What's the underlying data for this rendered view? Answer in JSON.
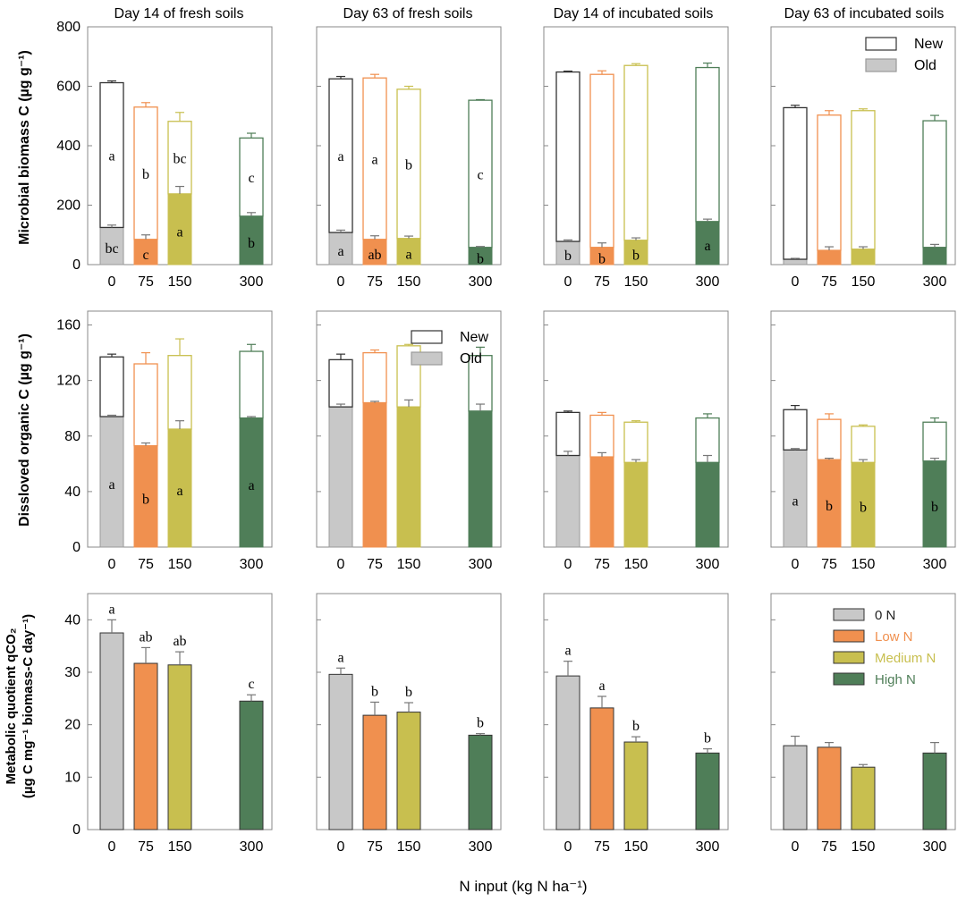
{
  "colors": {
    "0": "#c8c8c8",
    "75": "#f0904f",
    "150": "#c8bf4f",
    "300": "#4f7e58",
    "axis": "#888888",
    "text": "#000000",
    "errorbar_black": "#222222"
  },
  "x_categories": [
    "0",
    "75",
    "150",
    "300"
  ],
  "column_titles": [
    "Day 14 of fresh soils",
    "Day 63 of fresh soils",
    "Day 14 of incubated soils",
    "Day 63 of incubated soils"
  ],
  "x_axis_label": "N input (kg N ha⁻¹)",
  "rows": [
    {
      "ylabel": "Microbial biomass C (µg g⁻¹)",
      "ylim": [
        0,
        800
      ],
      "yticks": [
        0,
        200,
        400,
        600,
        800
      ],
      "legend": {
        "panel": 3,
        "position": "top-right",
        "entries": [
          "New",
          "Old"
        ]
      }
    },
    {
      "ylabel": "Dissloved organic C (µg g⁻¹)",
      "ylim": [
        0,
        170
      ],
      "yticks": [
        0,
        40,
        80,
        120,
        160
      ],
      "legend": {
        "panel": 1,
        "position": "top-right",
        "entries": [
          "New",
          "Old"
        ]
      }
    },
    {
      "ylabel_line1": "Metabolic quotient qCO₂",
      "ylabel_line2": "(µg C mg⁻¹ biomass-C day⁻¹)",
      "ylim": [
        0,
        45
      ],
      "yticks": [
        0,
        10,
        20,
        30,
        40
      ],
      "legend": {
        "panel": 3,
        "position": "top-right",
        "entries": [
          "0 N",
          "Low N",
          "Medium N",
          "High N"
        ]
      }
    }
  ],
  "chart_data": [
    {
      "type": "stacked-bar",
      "row": 0,
      "col": 0,
      "title": "Day 14 of fresh soils",
      "ylabel": "Microbial biomass C (µg g⁻¹)",
      "ylim": [
        0,
        800
      ],
      "categories": [
        "0",
        "75",
        "150",
        "300"
      ],
      "series": [
        {
          "name": "Old",
          "values": [
            125,
            85,
            238,
            163
          ],
          "errors": [
            8,
            15,
            25,
            12
          ],
          "letters": [
            "bc",
            "c",
            "a",
            "b"
          ]
        },
        {
          "name": "New",
          "values": [
            487,
            445,
            244,
            263
          ],
          "errors": [
            6,
            15,
            30,
            16
          ],
          "letters": [
            "a",
            "b",
            "bc",
            "c"
          ]
        }
      ]
    },
    {
      "type": "stacked-bar",
      "row": 0,
      "col": 1,
      "title": "Day 63 of fresh soils",
      "ylabel": "Microbial biomass C (µg g⁻¹)",
      "ylim": [
        0,
        800
      ],
      "categories": [
        "0",
        "75",
        "150",
        "300"
      ],
      "series": [
        {
          "name": "Old",
          "values": [
            108,
            85,
            88,
            58
          ],
          "errors": [
            8,
            12,
            8,
            3
          ],
          "letters": [
            "a",
            "ab",
            "a",
            "b"
          ]
        },
        {
          "name": "New",
          "values": [
            517,
            543,
            502,
            495
          ],
          "errors": [
            8,
            12,
            10,
            2
          ],
          "letters": [
            "a",
            "a",
            "b",
            "c"
          ]
        }
      ]
    },
    {
      "type": "stacked-bar",
      "row": 0,
      "col": 2,
      "title": "Day 14 of incubated soils",
      "ylabel": "Microbial biomass C (µg g⁻¹)",
      "ylim": [
        0,
        800
      ],
      "categories": [
        "0",
        "75",
        "150",
        "300"
      ],
      "series": [
        {
          "name": "Old",
          "values": [
            78,
            58,
            82,
            145
          ],
          "errors": [
            5,
            15,
            8,
            8
          ],
          "letters": [
            "b",
            "b",
            "b",
            "a"
          ]
        },
        {
          "name": "New",
          "values": [
            570,
            582,
            588,
            518
          ],
          "errors": [
            3,
            12,
            6,
            15
          ],
          "letters": [
            "",
            "",
            "",
            ""
          ]
        }
      ]
    },
    {
      "type": "stacked-bar",
      "row": 0,
      "col": 3,
      "title": "Day 63 of incubated soils",
      "ylabel": "Microbial biomass C (µg g⁻¹)",
      "ylim": [
        0,
        800
      ],
      "categories": [
        "0",
        "75",
        "150",
        "300"
      ],
      "series": [
        {
          "name": "Old",
          "values": [
            18,
            48,
            52,
            58
          ],
          "errors": [
            3,
            12,
            8,
            10
          ],
          "letters": [
            "",
            "",
            "",
            ""
          ]
        },
        {
          "name": "New",
          "values": [
            510,
            455,
            466,
            426
          ],
          "errors": [
            8,
            15,
            6,
            18
          ],
          "letters": [
            "",
            "",
            "",
            ""
          ]
        }
      ]
    },
    {
      "type": "stacked-bar",
      "row": 1,
      "col": 0,
      "title": "Day 14 of fresh soils",
      "ylabel": "Dissloved organic C (µg g⁻¹)",
      "ylim": [
        0,
        170
      ],
      "categories": [
        "0",
        "75",
        "150",
        "300"
      ],
      "series": [
        {
          "name": "Old",
          "values": [
            94,
            73,
            85,
            93
          ],
          "errors": [
            1,
            2,
            6,
            1
          ],
          "letters": [
            "a",
            "b",
            "a",
            "a"
          ]
        },
        {
          "name": "New",
          "values": [
            43,
            59,
            53,
            48
          ],
          "errors": [
            2,
            8,
            12,
            5
          ],
          "letters": [
            "",
            "",
            "",
            ""
          ]
        }
      ]
    },
    {
      "type": "stacked-bar",
      "row": 1,
      "col": 1,
      "title": "Day 63 of fresh soils",
      "ylabel": "Dissloved organic C (µg g⁻¹)",
      "ylim": [
        0,
        170
      ],
      "categories": [
        "0",
        "75",
        "150",
        "300"
      ],
      "series": [
        {
          "name": "Old",
          "values": [
            101,
            104,
            101,
            98
          ],
          "errors": [
            2,
            1,
            5,
            5
          ],
          "letters": [
            "",
            "",
            "",
            ""
          ]
        },
        {
          "name": "New",
          "values": [
            34,
            36,
            44,
            40
          ],
          "errors": [
            4,
            2,
            1,
            6
          ],
          "letters": [
            "",
            "",
            "",
            ""
          ]
        }
      ]
    },
    {
      "type": "stacked-bar",
      "row": 1,
      "col": 2,
      "title": "Day 14 of incubated soils",
      "ylabel": "Dissloved organic C (µg g⁻¹)",
      "ylim": [
        0,
        170
      ],
      "categories": [
        "0",
        "75",
        "150",
        "300"
      ],
      "series": [
        {
          "name": "Old",
          "values": [
            66,
            65,
            61,
            61
          ],
          "errors": [
            3,
            3,
            2,
            5
          ],
          "letters": [
            "",
            "",
            "",
            ""
          ]
        },
        {
          "name": "New",
          "values": [
            31,
            30,
            29,
            32
          ],
          "errors": [
            1,
            2,
            1,
            3
          ],
          "letters": [
            "",
            "",
            "",
            ""
          ]
        }
      ]
    },
    {
      "type": "stacked-bar",
      "row": 1,
      "col": 3,
      "title": "Day 63 of incubated soils",
      "ylabel": "Dissloved organic C (µg g⁻¹)",
      "ylim": [
        0,
        170
      ],
      "categories": [
        "0",
        "75",
        "150",
        "300"
      ],
      "series": [
        {
          "name": "Old",
          "values": [
            70,
            63,
            61,
            62
          ],
          "errors": [
            1,
            1,
            2,
            2
          ],
          "letters": [
            "a",
            "b",
            "b",
            "b"
          ]
        },
        {
          "name": "New",
          "values": [
            29,
            29,
            26,
            28
          ],
          "errors": [
            3,
            4,
            1,
            3
          ],
          "letters": [
            "",
            "",
            "",
            ""
          ]
        }
      ]
    },
    {
      "type": "bar",
      "row": 2,
      "col": 0,
      "title": "Day 14 of fresh soils",
      "ylabel": "Metabolic quotient qCO₂ (µg C mg⁻¹ biomass-C day⁻¹)",
      "ylim": [
        0,
        45
      ],
      "categories": [
        "0",
        "75",
        "150",
        "300"
      ],
      "values": [
        37.5,
        31.7,
        31.4,
        24.5
      ],
      "errors": [
        2.5,
        3.0,
        2.5,
        1.2
      ],
      "letters": [
        "a",
        "ab",
        "ab",
        "c"
      ]
    },
    {
      "type": "bar",
      "row": 2,
      "col": 1,
      "title": "Day 63 of fresh soils",
      "ylabel": "Metabolic quotient qCO₂ (µg C mg⁻¹ biomass-C day⁻¹)",
      "ylim": [
        0,
        45
      ],
      "categories": [
        "0",
        "75",
        "150",
        "300"
      ],
      "values": [
        29.6,
        21.8,
        22.4,
        18.0
      ],
      "errors": [
        1.2,
        2.5,
        1.8,
        0.3
      ],
      "letters": [
        "a",
        "b",
        "b",
        "b"
      ]
    },
    {
      "type": "bar",
      "row": 2,
      "col": 2,
      "title": "Day 14 of incubated soils",
      "ylabel": "Metabolic quotient qCO₂ (µg C mg⁻¹ biomass-C day⁻¹)",
      "ylim": [
        0,
        45
      ],
      "categories": [
        "0",
        "75",
        "150",
        "300"
      ],
      "values": [
        29.3,
        23.2,
        16.7,
        14.6
      ],
      "errors": [
        2.8,
        2.2,
        1.0,
        0.8
      ],
      "letters": [
        "a",
        "a",
        "b",
        "b"
      ]
    },
    {
      "type": "bar",
      "row": 2,
      "col": 3,
      "title": "Day 63 of incubated soils",
      "ylabel": "Metabolic quotient qCO₂ (µg C mg⁻¹ biomass-C day⁻¹)",
      "ylim": [
        0,
        45
      ],
      "categories": [
        "0",
        "75",
        "150",
        "300"
      ],
      "values": [
        16.0,
        15.7,
        11.9,
        14.6
      ],
      "errors": [
        1.8,
        0.9,
        0.5,
        2.0
      ],
      "letters": [
        "",
        "",
        "",
        ""
      ]
    }
  ]
}
